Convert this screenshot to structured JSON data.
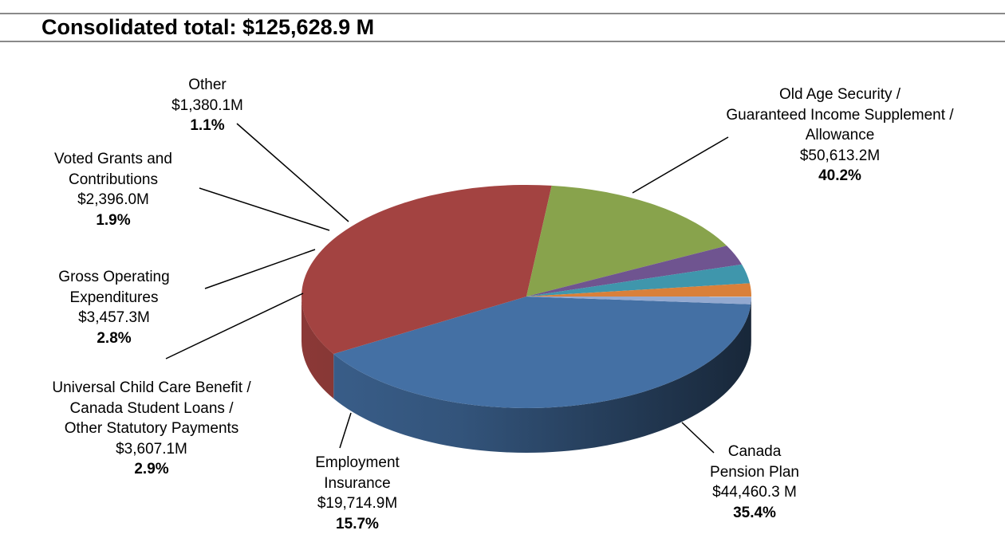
{
  "chart_data": {
    "type": "pie",
    "style": "3d",
    "title": "Consolidated total: $125,628.9 M",
    "slices": [
      {
        "label_lines": [
          "Old Age Security /",
          "Guaranteed Income Supplement /",
          "Allowance"
        ],
        "amount": "$50,613.2M",
        "percent": "40.2%",
        "value": 50613.2,
        "color": "#4470a4"
      },
      {
        "label_lines": [
          "Canada",
          "Pension Plan"
        ],
        "amount": "$44,460.3 M",
        "percent": "35.4%",
        "value": 44460.3,
        "color": "#a34341"
      },
      {
        "label_lines": [
          "Employment",
          "Insurance"
        ],
        "amount": "$19,714.9M",
        "percent": "15.7%",
        "value": 19714.9,
        "color": "#88a34c"
      },
      {
        "label_lines": [
          "Universal Child Care Benefit /",
          "Canada Student Loans /",
          "Other Statutory Payments"
        ],
        "amount": "$3,607.1M",
        "percent": "2.9%",
        "value": 3607.1,
        "color": "#6f5490"
      },
      {
        "label_lines": [
          "Gross Operating",
          "Expenditures"
        ],
        "amount": "$3,457.3M",
        "percent": "2.8%",
        "value": 3457.3,
        "color": "#3f96ac"
      },
      {
        "label_lines": [
          "Voted Grants and",
          "Contributions"
        ],
        "amount": "$2,396.0M",
        "percent": "1.9%",
        "value": 2396.0,
        "color": "#d9803a"
      },
      {
        "label_lines": [
          "Other"
        ],
        "amount": "$1,380.1M",
        "percent": "1.1%",
        "value": 1380.1,
        "color": "#93a9d0"
      }
    ],
    "legend": "none (leader-line labels)"
  }
}
